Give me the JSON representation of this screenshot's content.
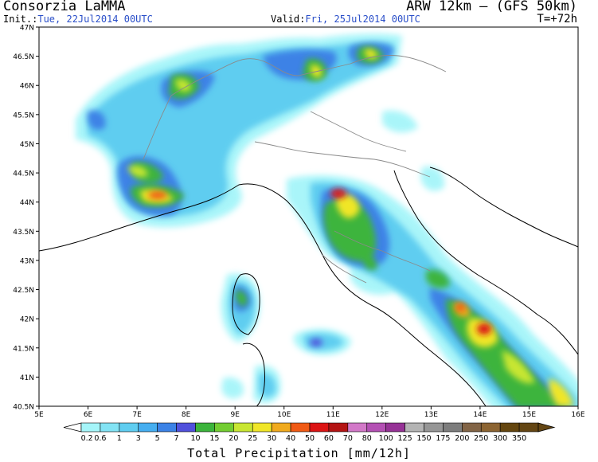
{
  "header": {
    "org": "Consorzia LaMMA",
    "model": "ARW 12km – (GFS 50km)",
    "init_label": "Init.:",
    "init_value": "Tue, 22Jul2014 00UTC",
    "valid_label": "Valid:",
    "valid_value": "Fri, 25Jul2014 00UTC",
    "step": "T=+72h"
  },
  "axes": {
    "lat_labels": [
      "47N",
      "46.5N",
      "46N",
      "45.5N",
      "45N",
      "44.5N",
      "44N",
      "43.5N",
      "43N",
      "42.5N",
      "42N",
      "41.5N",
      "41N",
      "40.5N"
    ],
    "lon_labels": [
      "5E",
      "6E",
      "7E",
      "8E",
      "9E",
      "10E",
      "11E",
      "12E",
      "13E",
      "14E",
      "15E",
      "16E"
    ]
  },
  "legend": {
    "title": "Total Precipitation [mm/12h]",
    "values": [
      "0.2",
      "0.6",
      "1",
      "3",
      "5",
      "7",
      "10",
      "15",
      "20",
      "25",
      "30",
      "40",
      "50",
      "60",
      "70",
      "80",
      "100",
      "125",
      "150",
      "175",
      "200",
      "250",
      "300",
      "350"
    ],
    "colors": [
      "#a5f5f9",
      "#82e3f4",
      "#5fcdf0",
      "#46aef0",
      "#3c82e6",
      "#5050dc",
      "#3cb43c",
      "#73cd32",
      "#c8e632",
      "#f0e628",
      "#f0aa1e",
      "#f05a14",
      "#dc1414",
      "#b41414",
      "#d278c8",
      "#b450b4",
      "#963296",
      "#b4b4b4",
      "#969696",
      "#7d7d7d",
      "#826446",
      "#8c6432",
      "#64460f",
      "#644614"
    ]
  }
}
